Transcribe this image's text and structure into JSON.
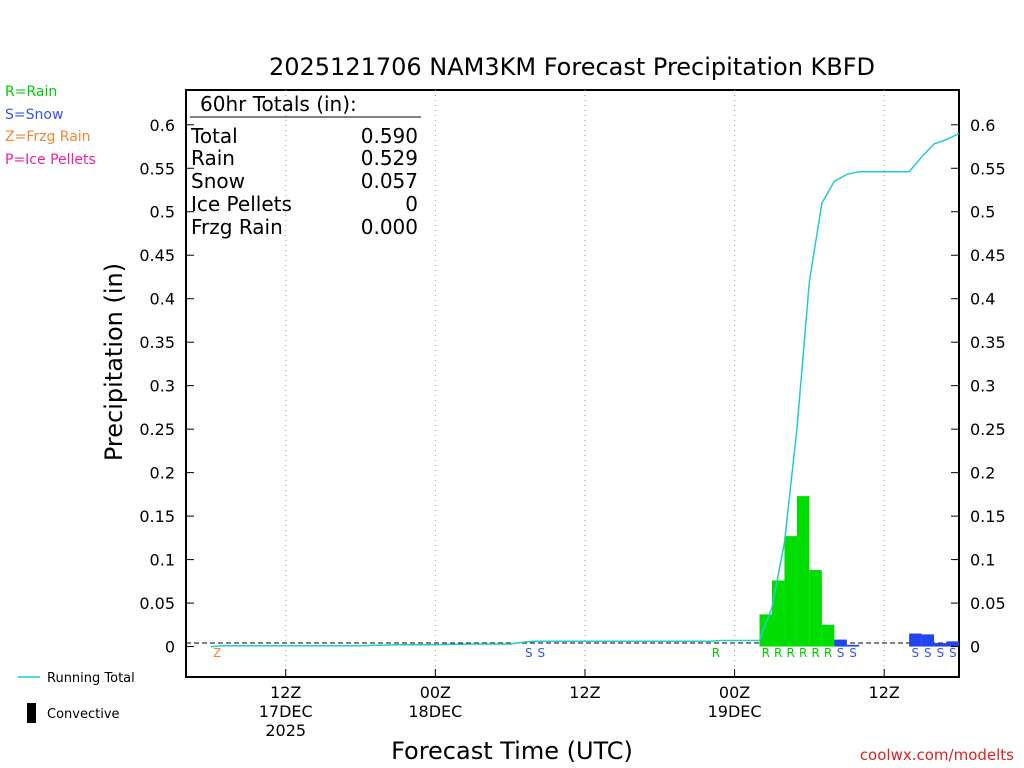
{
  "chart_data": {
    "type": "bar",
    "title": "2025121706 NAM3KM Forecast Precipitation KBFD",
    "xlabel": "Forecast Time (UTC)",
    "ylabel": "Precipitation (in)",
    "ylim": [
      -0.035,
      0.64
    ],
    "xlim_hours": [
      -2,
      60
    ],
    "y_ticks": [
      0,
      0.05,
      0.1,
      0.15,
      0.2,
      0.25,
      0.3,
      0.35,
      0.4,
      0.45,
      0.5,
      0.55,
      0.6
    ],
    "y_tick_labels": [
      "0",
      "0.05",
      "0.1",
      "0.15",
      "0.2",
      "0.25",
      "0.3",
      "0.35",
      "0.4",
      "0.45",
      "0.5",
      "0.55",
      "0.6"
    ],
    "x_ticks": [
      {
        "hour": 6,
        "lines": [
          "12Z",
          "17DEC",
          "2025"
        ]
      },
      {
        "hour": 18,
        "lines": [
          "00Z",
          "18DEC"
        ]
      },
      {
        "hour": 30,
        "lines": [
          "12Z"
        ]
      },
      {
        "hour": 42,
        "lines": [
          "00Z",
          "19DEC"
        ]
      },
      {
        "hour": 54,
        "lines": [
          "12Z"
        ]
      }
    ],
    "grid": "vertical dotted",
    "legend_types": [
      {
        "label": "R=Rain",
        "color": "#00cc00"
      },
      {
        "label": "S=Snow",
        "color": "#3355ee"
      },
      {
        "label": "Z=Frzg Rain",
        "color": "#ee8833"
      },
      {
        "label": "P=Ice Pellets",
        "color": "#ee2299"
      }
    ],
    "legend_series": [
      {
        "label": "Running Total",
        "color": "#22cccc"
      },
      {
        "label": "Convective",
        "color": "#000000"
      }
    ],
    "totals": {
      "header": "60hr Totals (in):",
      "rows": [
        {
          "label": "Total",
          "value": "0.590"
        },
        {
          "label": "Rain",
          "value": "0.529"
        },
        {
          "label": "Snow",
          "value": "0.057"
        },
        {
          "label": "Ice Pellets",
          "value": "0"
        },
        {
          "label": "Frzg Rain",
          "value": "0.000"
        }
      ]
    },
    "bars": [
      {
        "hour": 45,
        "value": 0.037,
        "type": "R"
      },
      {
        "hour": 46,
        "value": 0.076,
        "type": "R"
      },
      {
        "hour": 47,
        "value": 0.127,
        "type": "R"
      },
      {
        "hour": 48,
        "value": 0.173,
        "type": "R"
      },
      {
        "hour": 49,
        "value": 0.088,
        "type": "R"
      },
      {
        "hour": 50,
        "value": 0.025,
        "type": "R"
      },
      {
        "hour": 51,
        "value": 0.008,
        "type": "S"
      },
      {
        "hour": 52,
        "value": 0.002,
        "type": "S"
      },
      {
        "hour": 57,
        "value": 0.015,
        "type": "S"
      },
      {
        "hour": 58,
        "value": 0.014,
        "type": "S"
      },
      {
        "hour": 59,
        "value": 0.004,
        "type": "S"
      },
      {
        "hour": 60,
        "value": 0.006,
        "type": "S"
      }
    ],
    "precip_markers": [
      {
        "hour": 1,
        "type": "Z"
      },
      {
        "hour": 26,
        "type": "S"
      },
      {
        "hour": 27,
        "type": "S"
      },
      {
        "hour": 41,
        "type": "R"
      },
      {
        "hour": 45,
        "type": "R"
      },
      {
        "hour": 46,
        "type": "R"
      },
      {
        "hour": 47,
        "type": "R"
      },
      {
        "hour": 48,
        "type": "R"
      },
      {
        "hour": 49,
        "type": "R"
      },
      {
        "hour": 50,
        "type": "R"
      },
      {
        "hour": 51,
        "type": "S"
      },
      {
        "hour": 52,
        "type": "S"
      },
      {
        "hour": 57,
        "type": "S"
      },
      {
        "hour": 58,
        "type": "S"
      },
      {
        "hour": 59,
        "type": "S"
      },
      {
        "hour": 60,
        "type": "S"
      }
    ],
    "running_total": {
      "name": "Running Total",
      "points": [
        [
          0,
          0.0
        ],
        [
          1,
          0.001
        ],
        [
          3,
          0.001
        ],
        [
          6,
          0.001
        ],
        [
          9,
          0.001
        ],
        [
          12,
          0.001
        ],
        [
          15,
          0.002
        ],
        [
          18,
          0.002
        ],
        [
          21,
          0.003
        ],
        [
          24,
          0.003
        ],
        [
          25,
          0.005
        ],
        [
          26,
          0.006
        ],
        [
          30,
          0.006
        ],
        [
          35,
          0.006
        ],
        [
          40,
          0.006
        ],
        [
          41,
          0.007
        ],
        [
          44,
          0.007
        ],
        [
          45,
          0.045
        ],
        [
          46,
          0.12
        ],
        [
          47,
          0.25
        ],
        [
          48,
          0.42
        ],
        [
          49,
          0.51
        ],
        [
          50,
          0.535
        ],
        [
          51,
          0.543
        ],
        [
          52,
          0.546
        ],
        [
          53,
          0.546
        ],
        [
          54,
          0.546
        ],
        [
          55,
          0.546
        ],
        [
          56,
          0.546
        ],
        [
          57,
          0.563
        ],
        [
          58,
          0.578
        ],
        [
          59,
          0.583
        ],
        [
          60,
          0.59
        ]
      ]
    },
    "credit": "coolwx.com/modelts"
  }
}
